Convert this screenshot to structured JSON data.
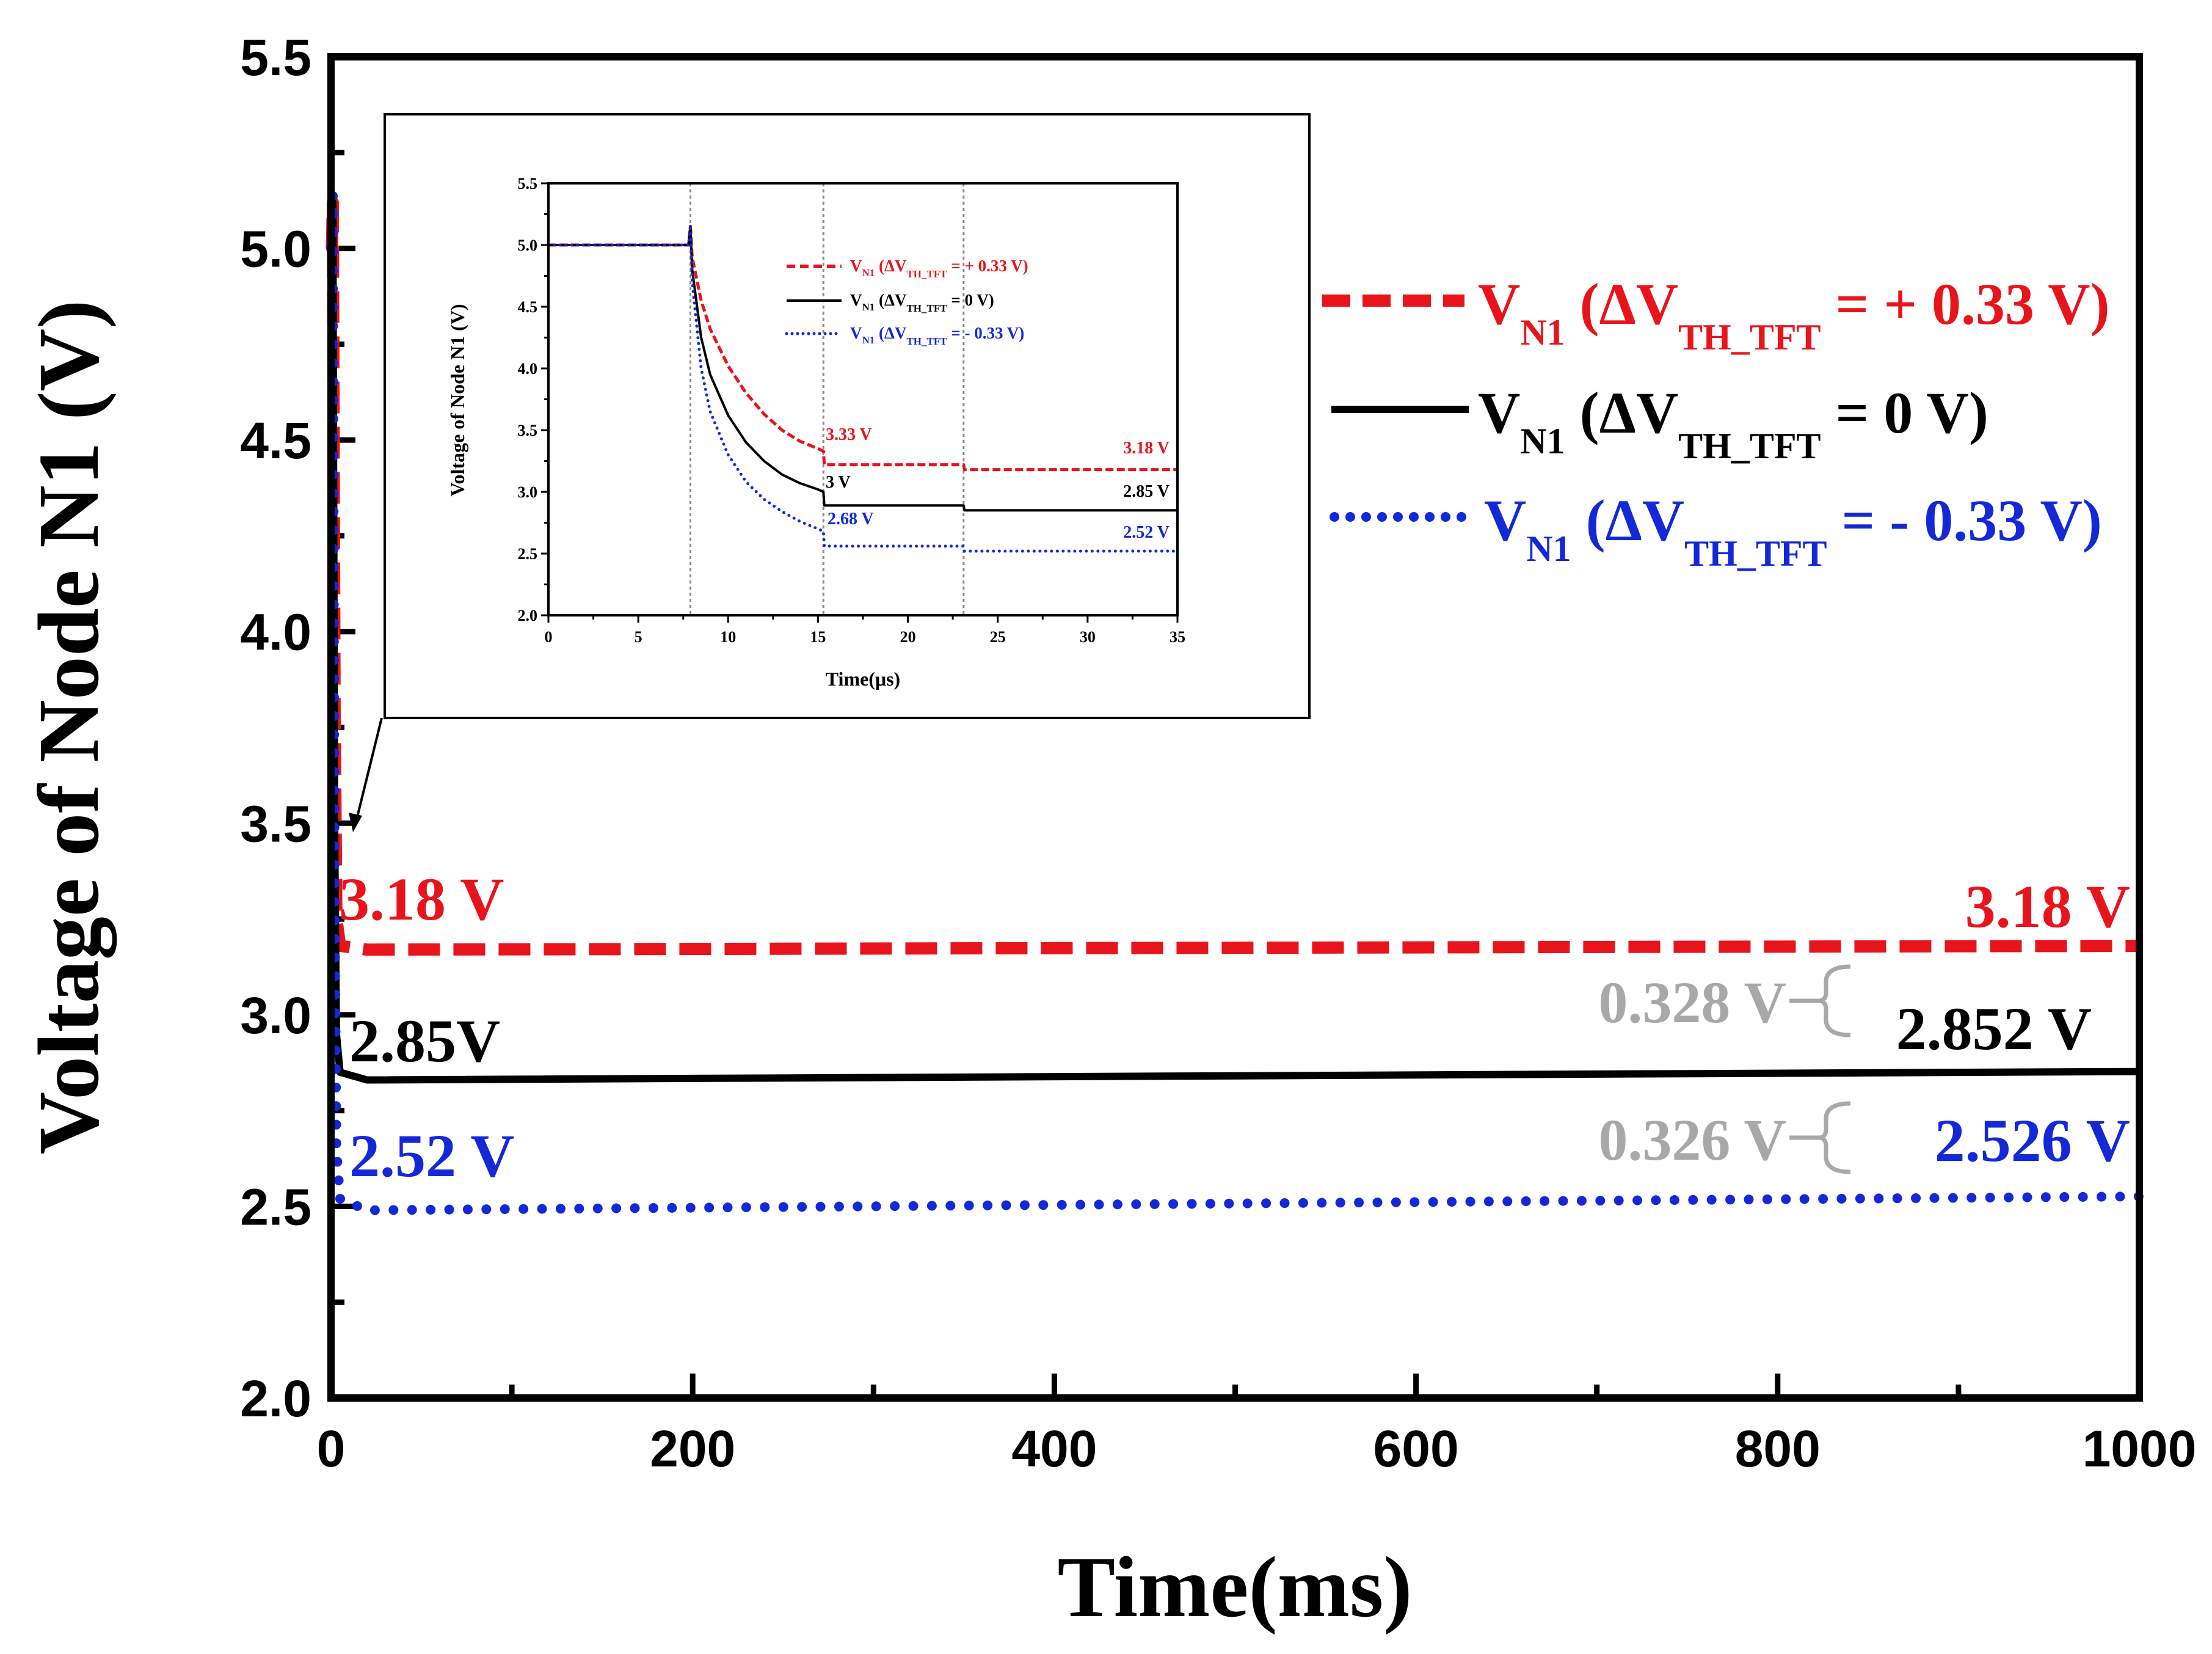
{
  "chart_data": [
    {
      "type": "line",
      "title": "",
      "xlabel": "Time(ms)",
      "ylabel": "Voltage of Node N1 (V)",
      "xlim": [
        0,
        1000
      ],
      "ylim": [
        2.0,
        5.5
      ],
      "xticks": [
        "0",
        "200",
        "400",
        "600",
        "800",
        "1000"
      ],
      "yticks": [
        "2.0",
        "2.5",
        "3.0",
        "3.5",
        "4.0",
        "4.5",
        "5.0",
        "5.5"
      ],
      "series": [
        {
          "name": "V_N1 (ΔV_TH_TFT = + 0.33 V)",
          "legend": {
            "main": "V",
            "sub1": "N1",
            "mid": " (ΔV",
            "sub2": "TH_TFT",
            "end": " = + 0.33 V)"
          },
          "color": "#e8141c",
          "style": "dashed",
          "x": [
            0,
            0.5,
            1,
            2,
            3,
            5,
            20,
            1000
          ],
          "y": [
            5.0,
            5.0,
            5.12,
            3.8,
            3.25,
            3.18,
            3.17,
            3.18
          ]
        },
        {
          "name": "V_N1 (ΔV_TH_TFT = 0 V)",
          "legend": {
            "main": "V",
            "sub1": "N1",
            "mid": " (ΔV",
            "sub2": "TH_TFT",
            "end": " = 0 V)"
          },
          "color": "#000000",
          "style": "solid",
          "x": [
            0,
            0.5,
            1,
            2,
            3,
            5,
            20,
            1000
          ],
          "y": [
            5.0,
            5.0,
            5.12,
            3.5,
            2.95,
            2.85,
            2.83,
            2.852
          ]
        },
        {
          "name": "V_N1 (ΔV_TH_TFT = - 0.33 V)",
          "legend": {
            "main": "V",
            "sub1": "N1",
            "mid": " (ΔV",
            "sub2": "TH_TFT",
            "end": " = - 0.33 V)"
          },
          "color": "#1428d8",
          "style": "dotted",
          "x": [
            0,
            0.5,
            1,
            2,
            3,
            5,
            20,
            1000
          ],
          "y": [
            5.0,
            5.0,
            5.14,
            3.3,
            2.65,
            2.52,
            2.49,
            2.526
          ]
        }
      ],
      "annotations": {
        "left_red": "3.18 V",
        "left_black": "2.85V",
        "left_blue": "2.52 V",
        "right_red": "3.18 V",
        "right_black": "2.852 V",
        "right_blue": "2.526 V",
        "diff_upper": "0.328 V",
        "diff_lower": "0.326 V"
      },
      "annotation_colors": {
        "gray": "#a8a8a8"
      }
    },
    {
      "type": "line",
      "title": "",
      "xlabel": "Time(μs)",
      "ylabel": "Voltage of Node N1 (V)",
      "xlim": [
        0,
        35
      ],
      "ylim": [
        2.0,
        5.5
      ],
      "xticks": [
        "0",
        "5",
        "10",
        "15",
        "20",
        "25",
        "30",
        "35"
      ],
      "yticks": [
        "2.0",
        "2.5",
        "3.0",
        "3.5",
        "4.0",
        "4.5",
        "5.0",
        "5.5"
      ],
      "vlines": [
        7.9,
        15.3,
        23.1
      ],
      "series": [
        {
          "name": "V_N1 (ΔV_TH_TFT = + 0.33 V)",
          "color": "#e8141c",
          "style": "dashed",
          "x": [
            0,
            7.8,
            7.9,
            8,
            8.5,
            9,
            10,
            11,
            12,
            13,
            14,
            15,
            15.3,
            15.35,
            23.1,
            23.15,
            35
          ],
          "y": [
            5.0,
            5.0,
            5.15,
            4.9,
            4.55,
            4.32,
            4.02,
            3.8,
            3.63,
            3.5,
            3.41,
            3.35,
            3.33,
            3.22,
            3.22,
            3.18,
            3.18
          ]
        },
        {
          "name": "V_N1 (ΔV_TH_TFT = 0 V)",
          "color": "#000000",
          "style": "solid",
          "x": [
            0,
            7.8,
            7.9,
            8,
            8.5,
            9,
            10,
            11,
            12,
            13,
            14,
            15,
            15.3,
            15.35,
            23.1,
            23.15,
            35
          ],
          "y": [
            5.0,
            5.0,
            5.15,
            4.8,
            4.25,
            3.95,
            3.62,
            3.4,
            3.25,
            3.14,
            3.07,
            3.02,
            3.0,
            2.89,
            2.89,
            2.85,
            2.85
          ]
        },
        {
          "name": "V_N1 (ΔV_TH_TFT = - 0.33 V)",
          "color": "#1428d8",
          "style": "dotted",
          "x": [
            0,
            7.8,
            7.9,
            8,
            8.5,
            9,
            10,
            11,
            12,
            13,
            14,
            15,
            15.3,
            15.35,
            23.1,
            23.15,
            35
          ],
          "y": [
            5.0,
            5.0,
            5.16,
            4.7,
            4.0,
            3.65,
            3.3,
            3.08,
            2.94,
            2.84,
            2.76,
            2.7,
            2.68,
            2.56,
            2.56,
            2.52,
            2.52
          ]
        }
      ],
      "annotations": {
        "red": "3.33 V",
        "black": "3 V",
        "blue": "2.68 V",
        "right_red": "3.18 V",
        "right_black": "2.85 V",
        "right_blue": "2.52 V"
      }
    }
  ]
}
